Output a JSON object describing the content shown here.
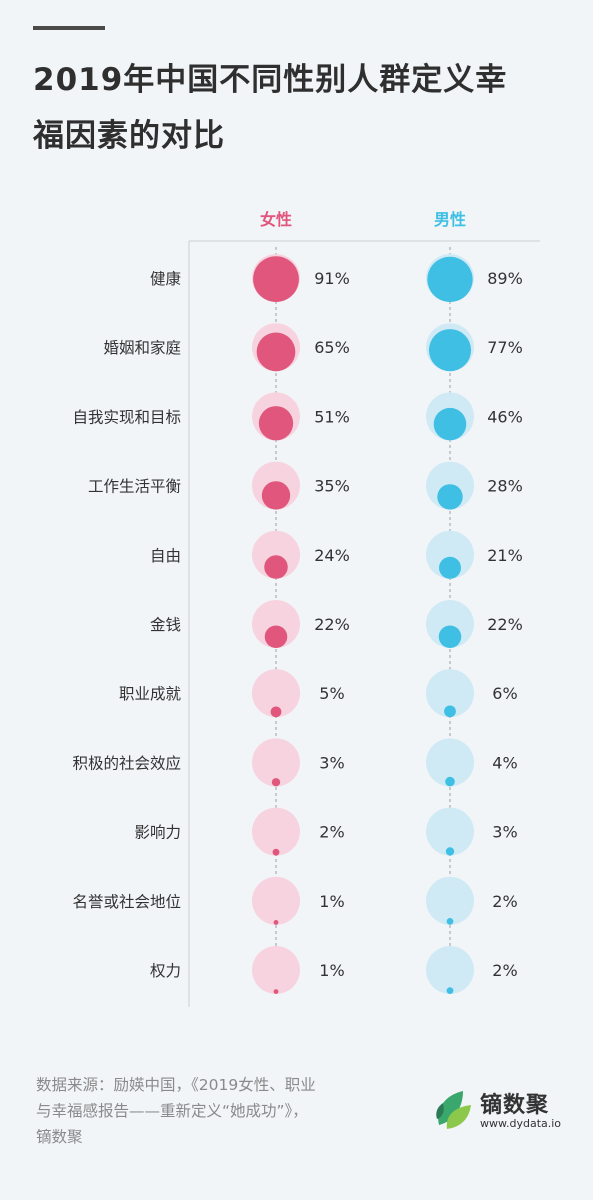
{
  "title_lines": [
    "2019年中国不同性别人群定义幸",
    "福因素的对比"
  ],
  "source_lines": [
    "数据来源：励媖中国，《2019女性、职业",
    "与幸福感报告——重新定义“她成功”》，",
    "镝数聚"
  ],
  "logo": {
    "name": "镝数聚",
    "url": "www.dydata.io"
  },
  "colors": {
    "female": "#e0567c",
    "female_light": "#f6d3de",
    "male": "#3fbfe4",
    "male_light": "#cfeaf5",
    "title": "#2f2f2f"
  },
  "chart_data": {
    "type": "bubble",
    "categories": [
      "健康",
      "婚姻和家庭",
      "自我实现和目标",
      "工作生活平衡",
      "自由",
      "金钱",
      "职业成就",
      "积极的社会效应",
      "影响力",
      "名誉或社会地位",
      "权力"
    ],
    "series": [
      {
        "name": "女性",
        "values": [
          91,
          65,
          51,
          35,
          24,
          22,
          5,
          3,
          2,
          1,
          1
        ],
        "labels": [
          "91%",
          "65%",
          "51%",
          "35%",
          "24%",
          "22%",
          "5%",
          "3%",
          "2%",
          "1%",
          "1%"
        ]
      },
      {
        "name": "男性",
        "values": [
          89,
          77,
          46,
          28,
          21,
          22,
          6,
          4,
          3,
          2,
          2
        ],
        "labels": [
          "89%",
          "77%",
          "46%",
          "28%",
          "21%",
          "22%",
          "6%",
          "4%",
          "3%",
          "2%",
          "2%"
        ]
      }
    ],
    "unit": "%",
    "max": 100
  }
}
